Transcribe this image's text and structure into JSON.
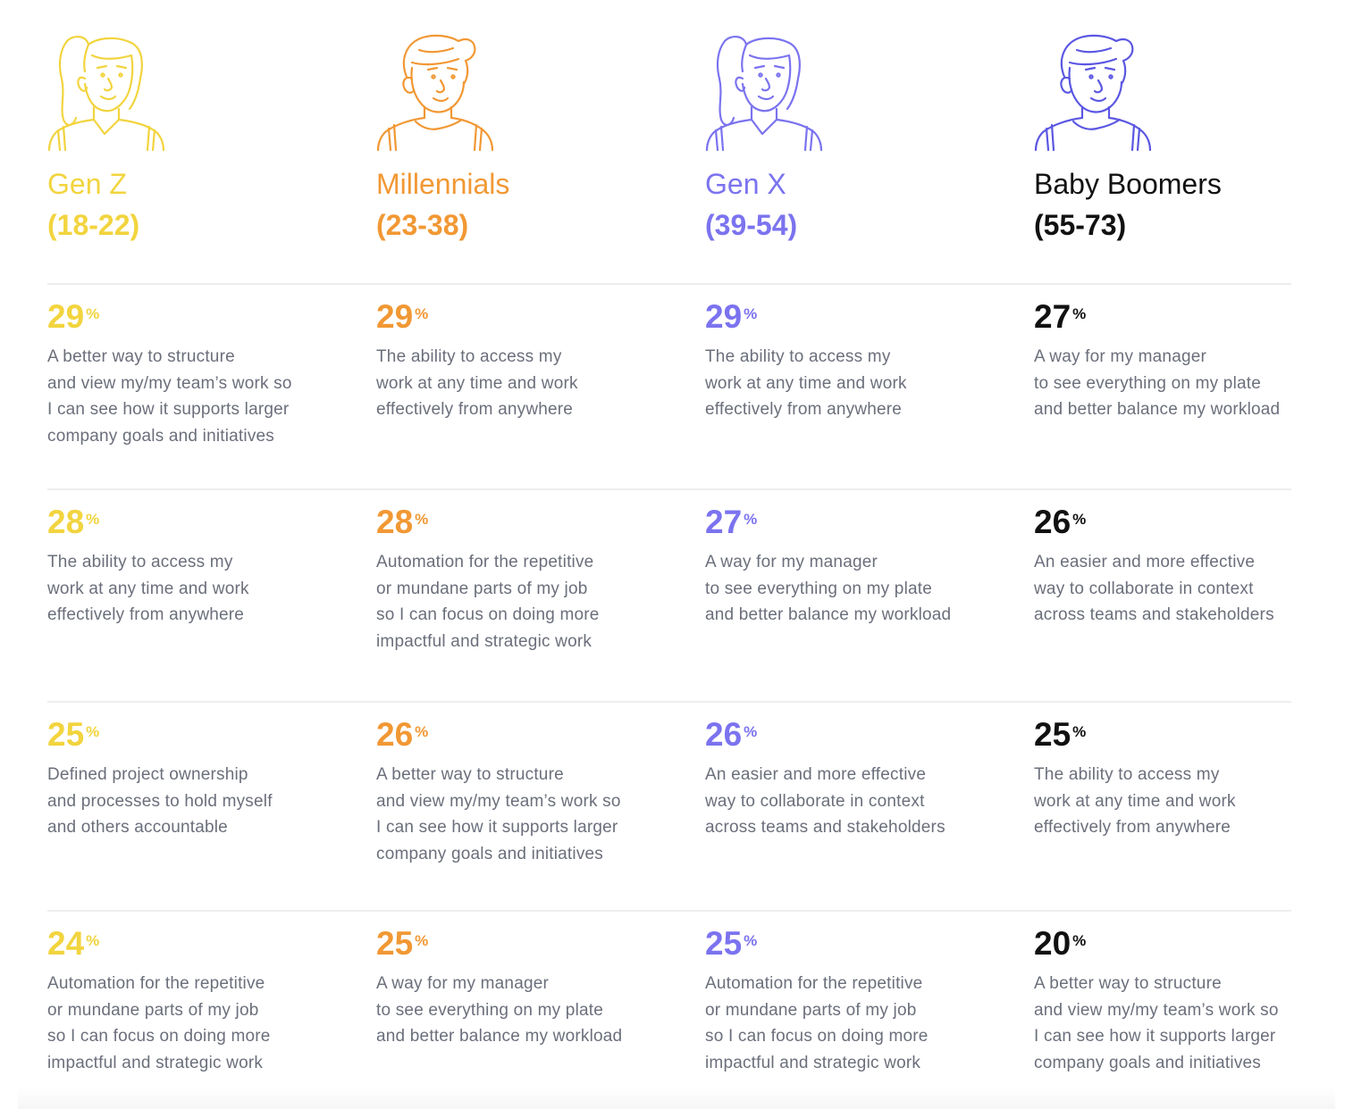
{
  "colors": {
    "genz": "#f2d43e",
    "millennials": "#f19834",
    "genx": "#7b73ef",
    "boomers": "#111111",
    "boomers_icon": "#5b57e2",
    "text": "#6b6f7b",
    "divider": "#eeeef0"
  },
  "generations": [
    {
      "name": "Gen Z",
      "age": "(18-22)",
      "icon": "woman-avatar-icon"
    },
    {
      "name": "Millennials",
      "age": "(23-38)",
      "icon": "man-avatar-icon"
    },
    {
      "name": "Gen X",
      "age": "(39-54)",
      "icon": "woman-avatar-icon"
    },
    {
      "name": "Baby Boomers",
      "age": "(55-73)",
      "icon": "man-avatar-icon"
    }
  ],
  "rows": [
    [
      {
        "value": "29",
        "unit": "%",
        "text": "A better way to structure\nand view my/my team’s work so\nI can see how it supports larger\ncompany goals and initiatives"
      },
      {
        "value": "29",
        "unit": "%",
        "text": "The ability to access my\nwork at any time and work\neffectively from anywhere"
      },
      {
        "value": "29",
        "unit": "%",
        "text": "The ability to access my\nwork at any time and work\neffectively from anywhere"
      },
      {
        "value": "27",
        "unit": "%",
        "text": "A way for my manager\nto see everything on my plate\nand better balance my workload"
      }
    ],
    [
      {
        "value": "28",
        "unit": "%",
        "text": "The ability to access my\nwork at any time and work\neffectively from anywhere"
      },
      {
        "value": "28",
        "unit": "%",
        "text": "Automation for the repetitive\nor mundane parts of my job\nso I can focus on doing more\nimpactful and strategic work"
      },
      {
        "value": "27",
        "unit": "%",
        "text": "A way for my manager\nto see everything on my plate\nand better balance my workload"
      },
      {
        "value": "26",
        "unit": "%",
        "text": "An easier and more effective\nway to collaborate in context\nacross teams and stakeholders"
      }
    ],
    [
      {
        "value": "25",
        "unit": "%",
        "text": "Defined project ownership\nand processes to hold myself\nand others accountable"
      },
      {
        "value": "26",
        "unit": "%",
        "text": "A better way to structure\nand view my/my team’s work so\nI can see how it supports larger\ncompany goals and initiatives"
      },
      {
        "value": "26",
        "unit": "%",
        "text": "An easier and more effective\nway to collaborate in context\nacross teams and stakeholders"
      },
      {
        "value": "25",
        "unit": "%",
        "text": "The ability to access my\nwork at any time and work\neffectively from anywhere"
      }
    ],
    [
      {
        "value": "24",
        "unit": "%",
        "text": "Automation for the repetitive\nor mundane parts of my job\nso I can focus on doing more\nimpactful and strategic work"
      },
      {
        "value": "25",
        "unit": "%",
        "text": "A way for my manager\nto see everything on my plate\nand better balance my workload"
      },
      {
        "value": "25",
        "unit": "%",
        "text": "Automation for the repetitive\nor mundane parts of my job\nso I can focus on doing more\nimpactful and strategic work"
      },
      {
        "value": "20",
        "unit": "%",
        "text": "A better way to structure\nand view my/my team’s work so\nI can see how it supports larger\ncompany goals and initiatives"
      }
    ]
  ]
}
